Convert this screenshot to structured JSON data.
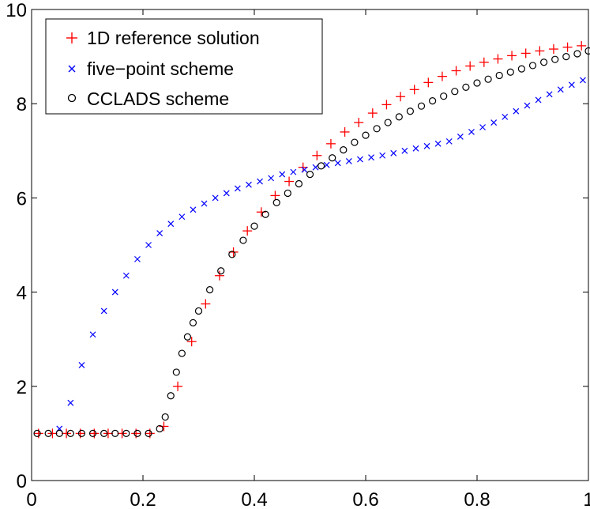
{
  "chart_data": {
    "type": "scatter",
    "title": "",
    "xlabel": "",
    "ylabel": "",
    "xlim": [
      0,
      1
    ],
    "ylim": [
      0,
      10
    ],
    "xticks": [
      "0",
      "0.2",
      "0.4",
      "0.6",
      "0.8",
      "1"
    ],
    "yticks": [
      "0",
      "2",
      "4",
      "6",
      "8",
      "10"
    ],
    "grid": false,
    "legend_position": "top-left",
    "colors": {
      "reference": "#ff0000",
      "five_point": "#0000ff",
      "cclads": "#000000"
    },
    "series": [
      {
        "name": "1D reference solution",
        "marker": "plus",
        "x": [
          0.0125,
          0.0375,
          0.0625,
          0.0875,
          0.1125,
          0.1375,
          0.1625,
          0.1875,
          0.2125,
          0.2375,
          0.2625,
          0.2875,
          0.3125,
          0.3375,
          0.3625,
          0.3875,
          0.4125,
          0.4375,
          0.4625,
          0.4875,
          0.5125,
          0.5375,
          0.5625,
          0.5875,
          0.6125,
          0.6375,
          0.6625,
          0.6875,
          0.7125,
          0.7375,
          0.7625,
          0.7875,
          0.8125,
          0.8375,
          0.8625,
          0.8875,
          0.9125,
          0.9375,
          0.9625,
          0.9875
        ],
        "y": [
          1.0,
          1.0,
          1.0,
          1.0,
          1.0,
          1.0,
          1.0,
          1.0,
          1.0,
          1.15,
          2.0,
          2.95,
          3.75,
          4.35,
          4.85,
          5.3,
          5.7,
          6.05,
          6.35,
          6.65,
          6.9,
          7.15,
          7.4,
          7.6,
          7.8,
          7.98,
          8.15,
          8.3,
          8.45,
          8.58,
          8.7,
          8.8,
          8.88,
          8.95,
          9.02,
          9.07,
          9.12,
          9.16,
          9.2,
          9.23
        ]
      },
      {
        "name": "five−point scheme",
        "marker": "x",
        "x": [
          0.05,
          0.07,
          0.09,
          0.11,
          0.13,
          0.15,
          0.17,
          0.19,
          0.21,
          0.23,
          0.25,
          0.27,
          0.29,
          0.31,
          0.33,
          0.35,
          0.37,
          0.39,
          0.41,
          0.43,
          0.45,
          0.47,
          0.49,
          0.51,
          0.53,
          0.55,
          0.57,
          0.59,
          0.61,
          0.63,
          0.65,
          0.67,
          0.69,
          0.71,
          0.73,
          0.75,
          0.77,
          0.79,
          0.81,
          0.83,
          0.85,
          0.87,
          0.89,
          0.91,
          0.93,
          0.95,
          0.97,
          0.99
        ],
        "y": [
          1.1,
          1.65,
          2.45,
          3.1,
          3.6,
          4.0,
          4.35,
          4.7,
          5.0,
          5.25,
          5.45,
          5.6,
          5.75,
          5.88,
          6.0,
          6.1,
          6.2,
          6.28,
          6.35,
          6.42,
          6.5,
          6.55,
          6.6,
          6.65,
          6.7,
          6.74,
          6.78,
          6.82,
          6.86,
          6.9,
          6.95,
          7.0,
          7.05,
          7.1,
          7.15,
          7.2,
          7.3,
          7.4,
          7.5,
          7.6,
          7.72,
          7.84,
          7.96,
          8.08,
          8.2,
          8.3,
          8.4,
          8.5
        ]
      },
      {
        "name": "CCLADS scheme",
        "marker": "circle",
        "x": [
          0.01,
          0.03,
          0.05,
          0.07,
          0.09,
          0.11,
          0.13,
          0.15,
          0.17,
          0.19,
          0.21,
          0.23,
          0.24,
          0.25,
          0.26,
          0.27,
          0.28,
          0.29,
          0.3,
          0.32,
          0.34,
          0.36,
          0.38,
          0.4,
          0.42,
          0.44,
          0.46,
          0.48,
          0.5,
          0.52,
          0.54,
          0.56,
          0.58,
          0.6,
          0.62,
          0.64,
          0.66,
          0.68,
          0.7,
          0.72,
          0.74,
          0.76,
          0.78,
          0.8,
          0.82,
          0.84,
          0.86,
          0.88,
          0.9,
          0.92,
          0.94,
          0.96,
          0.98,
          1.0
        ],
        "y": [
          1.0,
          1.0,
          1.0,
          1.0,
          1.0,
          1.0,
          1.0,
          1.0,
          1.0,
          1.0,
          1.0,
          1.1,
          1.35,
          1.8,
          2.3,
          2.7,
          3.05,
          3.35,
          3.6,
          4.05,
          4.45,
          4.8,
          5.1,
          5.4,
          5.65,
          5.9,
          6.1,
          6.3,
          6.5,
          6.68,
          6.85,
          7.02,
          7.18,
          7.33,
          7.47,
          7.6,
          7.72,
          7.84,
          7.95,
          8.06,
          8.16,
          8.26,
          8.35,
          8.44,
          8.52,
          8.6,
          8.67,
          8.74,
          8.81,
          8.88,
          8.94,
          9.0,
          9.06,
          9.12
        ]
      }
    ]
  }
}
